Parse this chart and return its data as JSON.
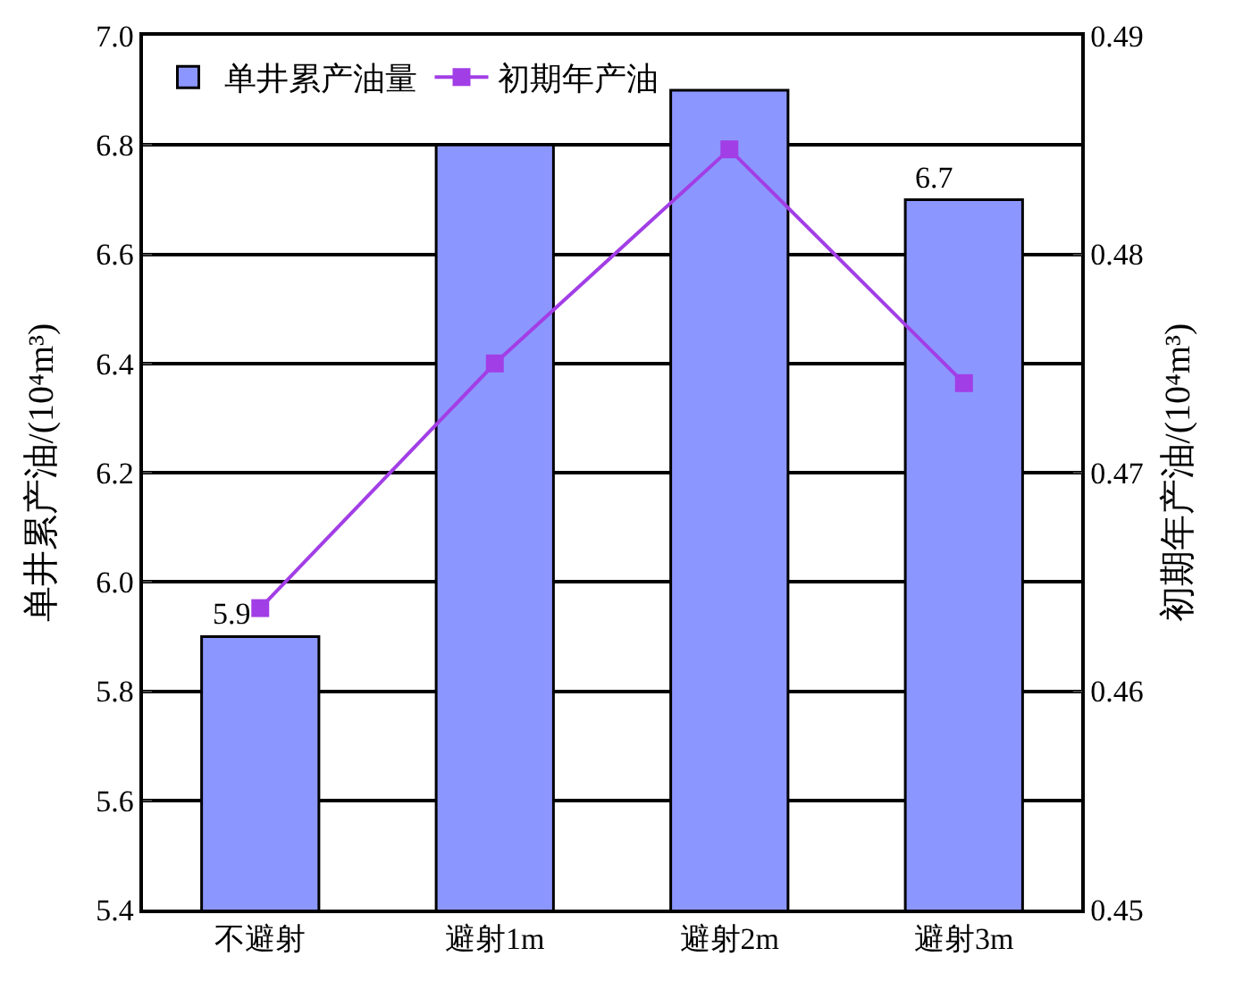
{
  "chart_data": {
    "type": "bar",
    "categories": [
      "不避射",
      "避射1m",
      "避射2m",
      "避射3m"
    ],
    "ylabel": "单井累产油/(10⁴m³)",
    "y2label": "初期年产油/(10⁴m³)",
    "ylim": [
      5.4,
      7.0
    ],
    "yticks": [
      {
        "value": 5.4,
        "label": "5.4"
      },
      {
        "value": 5.6,
        "label": "5.6"
      },
      {
        "value": 5.8,
        "label": "5.8"
      },
      {
        "value": 6.0,
        "label": "6.0"
      },
      {
        "value": 6.2,
        "label": "6.2"
      },
      {
        "value": 6.4,
        "label": "6.4"
      },
      {
        "value": 6.6,
        "label": "6.6"
      },
      {
        "value": 6.8,
        "label": "6.8"
      },
      {
        "value": 7.0,
        "label": "7.0"
      }
    ],
    "y2lim": [
      0.45,
      0.49
    ],
    "y2ticks": [
      {
        "value": 0.45,
        "label": "0.45"
      },
      {
        "value": 0.46,
        "label": "0.46"
      },
      {
        "value": 0.47,
        "label": "0.47"
      },
      {
        "value": 0.48,
        "label": "0.48"
      },
      {
        "value": 0.49,
        "label": "0.49"
      }
    ],
    "series": [
      {
        "name": "单井累产油量",
        "color": "#8c96ff",
        "values": [
          5.9,
          6.8,
          6.9,
          6.7
        ],
        "value_labels": [
          "5.9",
          null,
          null,
          "6.7"
        ]
      },
      {
        "name": "初期年产油",
        "type": "line",
        "axis": "y2",
        "color": "#a23ee6",
        "marker": "square",
        "values": [
          0.4638,
          0.475,
          0.4848,
          0.4741
        ]
      }
    ],
    "grid": "y",
    "legend": "top left"
  }
}
